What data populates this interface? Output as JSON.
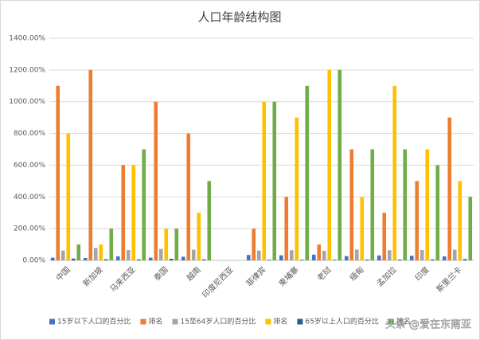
{
  "chart_data": {
    "type": "bar",
    "title": "人口年龄结构图",
    "categories": [
      "中国",
      "新加坡",
      "马来西亚",
      "泰国",
      "越南",
      "印度尼西亚",
      "菲律宾",
      "柬埔寨",
      "老挝",
      "缅甸",
      "孟加拉",
      "印度",
      "斯里兰卡"
    ],
    "series": [
      {
        "name": "15岁以下人口的百分比",
        "color": "#4472c4",
        "values": [
          17,
          15,
          25,
          17,
          23,
          null,
          34,
          32,
          36,
          27,
          31,
          29,
          25
        ]
      },
      {
        "name": "排名",
        "color": "#ed7d31",
        "values": [
          1100,
          1200,
          600,
          1000,
          800,
          null,
          200,
          400,
          100,
          700,
          300,
          500,
          900
        ]
      },
      {
        "name": "15至64岁人口的百分比",
        "color": "#a5a5a5",
        "values": [
          62,
          78,
          65,
          72,
          67,
          null,
          62,
          64,
          60,
          68,
          64,
          65,
          67
        ]
      },
      {
        "name": "排名",
        "color": "#ffc000",
        "values": [
          800,
          100,
          600,
          200,
          300,
          null,
          1000,
          900,
          1200,
          400,
          1100,
          700,
          500
        ]
      },
      {
        "name": "65岁以上人口的百分比",
        "color": "#255e91",
        "values": [
          11,
          7,
          6,
          10,
          6,
          null,
          4,
          4,
          4,
          5,
          5,
          6,
          8
        ]
      },
      {
        "name": "排名",
        "color": "#70ad47",
        "values": [
          100,
          200,
          700,
          200,
          500,
          null,
          1000,
          1100,
          1200,
          700,
          700,
          600,
          400
        ]
      }
    ],
    "ylim": [
      0,
      1400
    ],
    "yticks": [
      {
        "value": 0,
        "label": "0.00%"
      },
      {
        "value": 200,
        "label": "200.00%"
      },
      {
        "value": 400,
        "label": "400.00%"
      },
      {
        "value": 600,
        "label": "600.00%"
      },
      {
        "value": 800,
        "label": "800.00%"
      },
      {
        "value": 1000,
        "label": "1000.00%"
      },
      {
        "value": 1200,
        "label": "1200.00%"
      },
      {
        "value": 1400,
        "label": "1400.00%"
      }
    ],
    "grid": true,
    "legend": "bottom",
    "watermark": "头条 @爱在东南亚"
  }
}
